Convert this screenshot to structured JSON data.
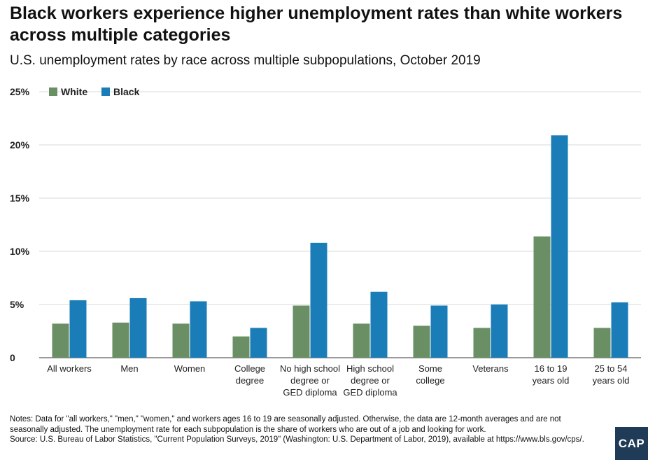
{
  "header": {
    "title": "Black workers experience higher unemployment rates than white workers across multiple categories",
    "subtitle": "U.S. unemployment rates by race across multiple subpopulations, October 2019"
  },
  "chart_data": {
    "type": "bar",
    "title": "Black workers experience higher unemployment rates than white workers across multiple categories",
    "subtitle": "U.S. unemployment rates by race across multiple subpopulations, October 2019",
    "xlabel": "",
    "ylabel": "",
    "ylim": [
      0,
      25
    ],
    "yticks": [
      0,
      5,
      10,
      15,
      20,
      25
    ],
    "ytick_labels": [
      "0",
      "5%",
      "10%",
      "15%",
      "20%",
      "25%"
    ],
    "grid": true,
    "legend_position": "top-left",
    "categories": [
      [
        "All workers"
      ],
      [
        "Men"
      ],
      [
        "Women"
      ],
      [
        "College",
        "degree"
      ],
      [
        "No high school",
        "degree or",
        "GED diploma"
      ],
      [
        "High school",
        "degree or",
        "GED diploma"
      ],
      [
        "Some",
        "college"
      ],
      [
        "Veterans"
      ],
      [
        "16 to 19",
        "years old"
      ],
      [
        "25 to 54",
        "years old"
      ]
    ],
    "series": [
      {
        "name": "White",
        "color": "#6a8f64",
        "values": [
          3.2,
          3.3,
          3.2,
          2.0,
          4.9,
          3.2,
          3.0,
          2.8,
          11.4,
          2.8
        ]
      },
      {
        "name": "Black",
        "color": "#1a7db7",
        "values": [
          5.4,
          5.6,
          5.3,
          2.8,
          10.8,
          6.2,
          4.9,
          5.0,
          20.9,
          5.2
        ]
      }
    ]
  },
  "footer": {
    "notes": "Notes: Data for \"all workers,\" \"men,\" \"women,\" and workers ages 16 to 19 are seasonally adjusted. Otherwise, the data are 12-month averages and are not seasonally adjusted. The unemployment rate for each subpopulation is the share of workers who are out of a job and looking for work.",
    "source": "Source: U.S. Bureau of Labor Statistics, \"Current Population Surveys, 2019\" (Washington: U.S. Department of Labor, 2019), available at https://www.bls.gov/cps/.",
    "logo_text": "CAP"
  }
}
